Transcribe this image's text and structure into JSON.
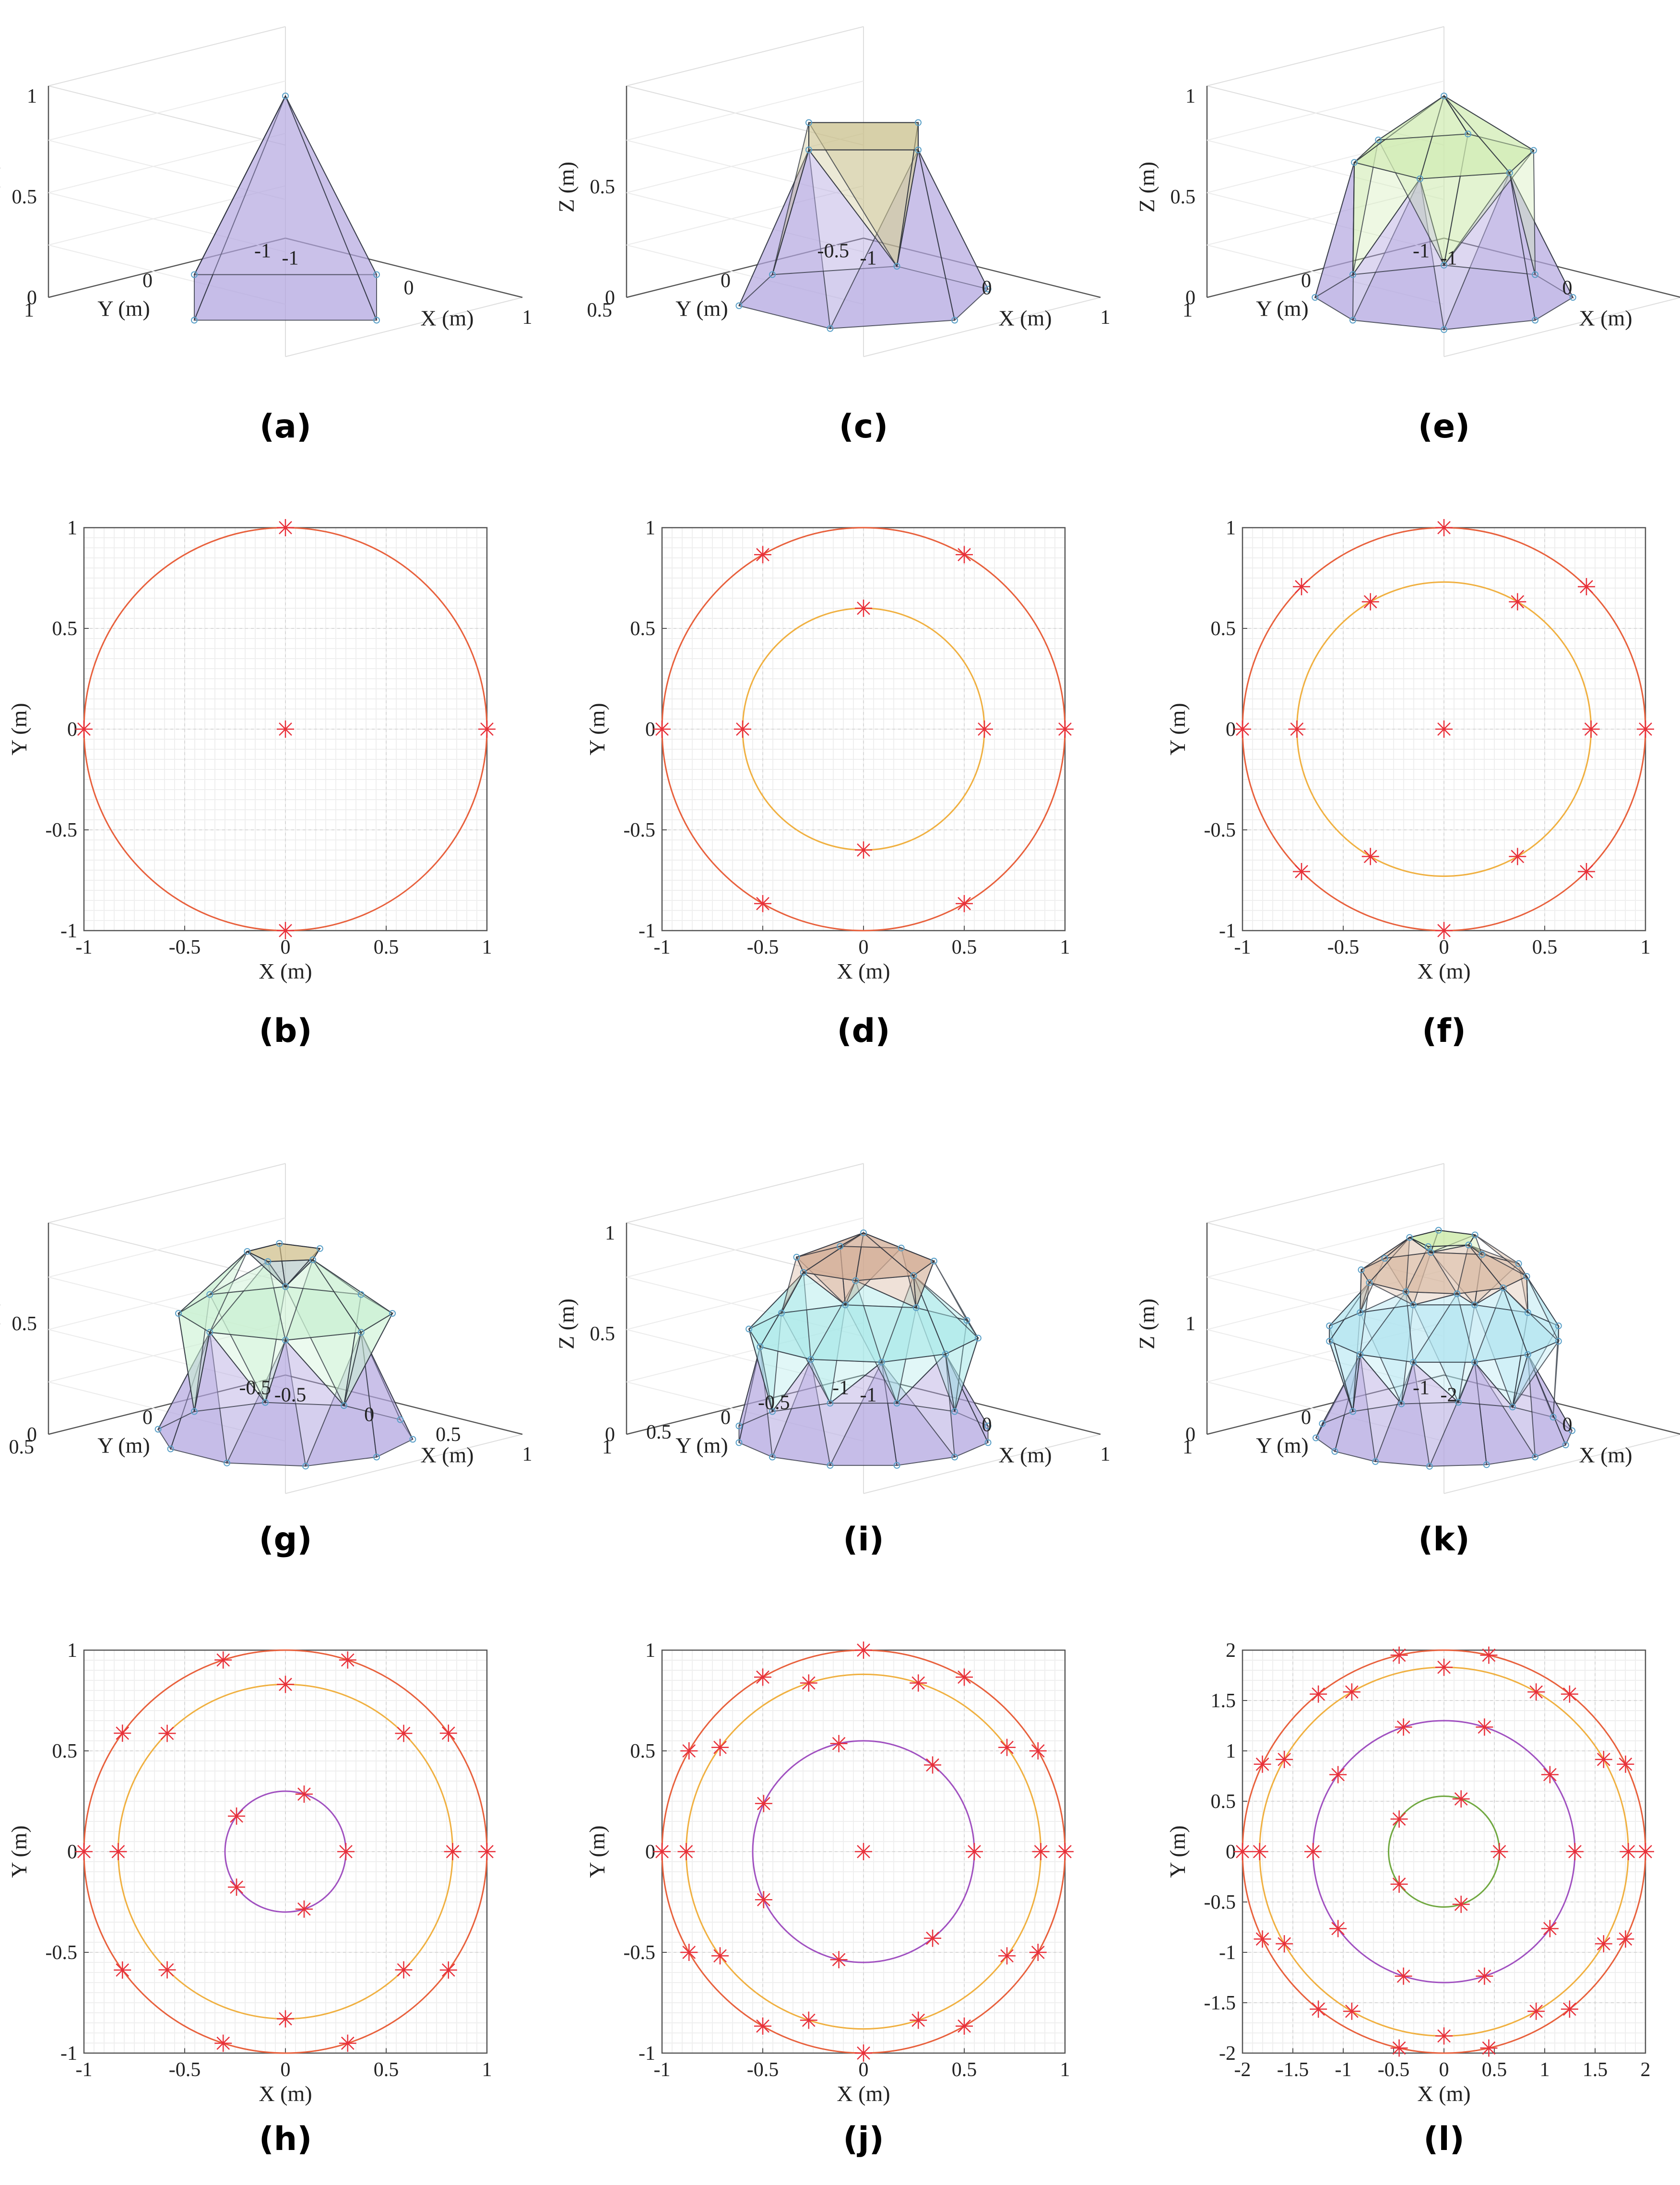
{
  "chart_data": [
    {
      "id": "a",
      "caption": "(a)",
      "type": "scatter3d",
      "xlabel": "X (m)",
      "ylabel": "Y (m)",
      "zlabel": "Z (m)",
      "xticks": [
        "-1",
        "0",
        "1"
      ],
      "yticks": [
        "-1",
        "0",
        "1"
      ],
      "zticks": [
        "0",
        "0.5",
        "1"
      ],
      "rings": [
        {
          "z": 0,
          "r": 1,
          "n": 4,
          "offset": 0
        },
        {
          "z": 1,
          "r": 0,
          "n": 1,
          "offset": 0
        }
      ],
      "fill_colors": [
        "#b3a7e0",
        "#9a8bd8"
      ]
    },
    {
      "id": "b",
      "caption": "(b)",
      "type": "scatter",
      "xlabel": "X (m)",
      "ylabel": "Y (m)",
      "xticks": [
        "-1",
        "-0.5",
        "0",
        "0.5",
        "1"
      ],
      "yticks": [
        "-1",
        "-0.5",
        "0",
        "0.5",
        "1"
      ],
      "lim": 1,
      "circles": [
        {
          "r": 1,
          "color": "#e8603c"
        }
      ],
      "points": [
        {
          "r": 1,
          "n": 4,
          "offset": 0
        },
        {
          "r": 0,
          "n": 1,
          "offset": 0
        }
      ]
    },
    {
      "id": "c",
      "caption": "(c)",
      "type": "scatter3d",
      "xlabel": "X (m)",
      "ylabel": "Y (m)",
      "zlabel": "Z (m)",
      "xticks": [
        "-1",
        "0",
        "1"
      ],
      "yticks": [
        "-0.5",
        "0",
        "0.5"
      ],
      "zticks": [
        "0",
        "0.5"
      ],
      "rings": [
        {
          "z": 0,
          "r": 1,
          "n": 6,
          "offset": 60
        },
        {
          "z": 0.8,
          "r": 0.6,
          "n": 4,
          "offset": 0
        }
      ],
      "fill_colors": [
        "#b3a7e0",
        "#c9c08a"
      ]
    },
    {
      "id": "d",
      "caption": "(d)",
      "type": "scatter",
      "xlabel": "X (m)",
      "ylabel": "Y (m)",
      "xticks": [
        "-1",
        "-0.5",
        "0",
        "0.5",
        "1"
      ],
      "yticks": [
        "-1",
        "-0.5",
        "0",
        "0.5",
        "1"
      ],
      "lim": 1,
      "circles": [
        {
          "r": 1,
          "color": "#e8603c"
        },
        {
          "r": 0.6,
          "color": "#f0b040"
        }
      ],
      "points": [
        {
          "r": 1,
          "n": 6,
          "offset": 60
        },
        {
          "r": 0.6,
          "n": 4,
          "offset": 0
        }
      ]
    },
    {
      "id": "e",
      "caption": "(e)",
      "type": "scatter3d",
      "xlabel": "X (m)",
      "ylabel": "Y (m)",
      "zlabel": "Z (m)",
      "xticks": [
        "-1",
        "0",
        "1"
      ],
      "yticks": [
        "-1",
        "0",
        "1"
      ],
      "zticks": [
        "0",
        "0.5",
        "1"
      ],
      "rings": [
        {
          "z": 0,
          "r": 1,
          "n": 8,
          "offset": 0
        },
        {
          "z": 0.7,
          "r": 0.72,
          "n": 6,
          "offset": 0
        },
        {
          "z": 1,
          "r": 0,
          "n": 1,
          "offset": 0
        }
      ],
      "fill_colors": [
        "#b3a7e0",
        "#cfeab0",
        "#a8b8a8"
      ]
    },
    {
      "id": "f",
      "caption": "(f)",
      "type": "scatter",
      "xlabel": "X (m)",
      "ylabel": "Y (m)",
      "xticks": [
        "-1",
        "-0.5",
        "0",
        "0.5",
        "1"
      ],
      "yticks": [
        "-1",
        "-0.5",
        "0",
        "0.5",
        "1"
      ],
      "lim": 1,
      "circles": [
        {
          "r": 1,
          "color": "#e8603c"
        },
        {
          "r": 0.73,
          "color": "#f0b040"
        }
      ],
      "points": [
        {
          "r": 1,
          "n": 8,
          "offset": 0
        },
        {
          "r": 0.73,
          "n": 6,
          "offset": 0
        },
        {
          "r": 0,
          "n": 1,
          "offset": 0
        }
      ]
    },
    {
      "id": "g",
      "caption": "(g)",
      "type": "scatter3d",
      "xlabel": "X (m)",
      "ylabel": "Y (m)",
      "zlabel": "Z (m)",
      "xticks": [
        "-0.5",
        "0",
        "0.5",
        "1"
      ],
      "yticks": [
        "-0.5",
        "0",
        "0.5"
      ],
      "zticks": [
        "0",
        "0.5"
      ],
      "rings": [
        {
          "z": 0,
          "r": 1,
          "n": 10,
          "offset": 0
        },
        {
          "z": 0.6,
          "r": 0.83,
          "n": 8,
          "offset": 0
        },
        {
          "z": 0.9,
          "r": 0.3,
          "n": 5,
          "offset": 0
        }
      ],
      "fill_colors": [
        "#b3a7e0",
        "#c8f0d0",
        "#a8c0c0",
        "#d8c080"
      ]
    },
    {
      "id": "h",
      "caption": "(h)",
      "type": "scatter",
      "xlabel": "X (m)",
      "ylabel": "Y (m)",
      "xticks": [
        "-1",
        "-0.5",
        "0",
        "0.5",
        "1"
      ],
      "yticks": [
        "-1",
        "-0.5",
        "0",
        "0.5",
        "1"
      ],
      "lim": 1,
      "circles": [
        {
          "r": 1,
          "color": "#e8603c"
        },
        {
          "r": 0.83,
          "color": "#f0b040"
        },
        {
          "r": 0.3,
          "color": "#a050c0"
        }
      ],
      "points": [
        {
          "r": 1,
          "n": 10,
          "offset": 0
        },
        {
          "r": 0.83,
          "n": 8,
          "offset": 0
        },
        {
          "r": 0.3,
          "n": 5,
          "offset": 0
        }
      ]
    },
    {
      "id": "i",
      "caption": "(i)",
      "type": "scatter3d",
      "xlabel": "X (m)",
      "ylabel": "Y (m)",
      "zlabel": "Z (m)",
      "xticks": [
        "-1",
        "0",
        "1"
      ],
      "yticks": [
        "-1",
        "-0.5",
        "0",
        "0.5",
        "1"
      ],
      "zticks": [
        "0",
        "0.5",
        "1"
      ],
      "rings": [
        {
          "z": 0,
          "r": 1,
          "n": 12,
          "offset": 0
        },
        {
          "z": 0.5,
          "r": 0.9,
          "n": 10,
          "offset": 0
        },
        {
          "z": 0.85,
          "r": 0.55,
          "n": 7,
          "offset": 0
        },
        {
          "z": 1,
          "r": 0,
          "n": 1,
          "offset": 0
        }
      ],
      "fill_colors": [
        "#b3a7e0",
        "#a8e8e8",
        "#d0a890",
        "#b8c898"
      ]
    },
    {
      "id": "j",
      "caption": "(j)",
      "type": "scatter",
      "xlabel": "X (m)",
      "ylabel": "Y (m)",
      "xticks": [
        "-1",
        "-0.5",
        "0",
        "0.5",
        "1"
      ],
      "yticks": [
        "-1",
        "-0.5",
        "0",
        "0.5",
        "1"
      ],
      "lim": 1,
      "circles": [
        {
          "r": 1,
          "color": "#e8603c"
        },
        {
          "r": 0.88,
          "color": "#f0b040"
        },
        {
          "r": 0.55,
          "color": "#a050c0"
        }
      ],
      "points": [
        {
          "r": 1,
          "n": 12,
          "offset": 0
        },
        {
          "r": 0.88,
          "n": 10,
          "offset": 0
        },
        {
          "r": 0.55,
          "n": 7,
          "offset": 0
        },
        {
          "r": 0,
          "n": 1,
          "offset": 0
        }
      ]
    },
    {
      "id": "k",
      "caption": "(k)",
      "type": "scatter3d",
      "xlabel": "X (m)",
      "ylabel": "Y (m)",
      "zlabel": "Z (m)",
      "xticks": [
        "-2",
        "0",
        "2"
      ],
      "yticks": [
        "-1",
        "0",
        "1"
      ],
      "zticks": [
        "0",
        "1"
      ],
      "rings": [
        {
          "z": 0,
          "r": 1,
          "n": 14,
          "offset": 0
        },
        {
          "z": 0.5,
          "r": 0.92,
          "n": 12,
          "offset": 0
        },
        {
          "z": 0.8,
          "r": 0.65,
          "n": 10,
          "offset": 0
        },
        {
          "z": 0.97,
          "r": 0.27,
          "n": 5,
          "offset": 0
        }
      ],
      "fill_colors": [
        "#b3a7e0",
        "#b0e4f0",
        "#d8b8a0",
        "#c8e8a0"
      ]
    },
    {
      "id": "l",
      "caption": "(l)",
      "type": "scatter",
      "xlabel": "X (m)",
      "ylabel": "Y (m)",
      "xticks": [
        "-2",
        "-1.5",
        "-1",
        "-0.5",
        "0",
        "0.5",
        "1",
        "1.5",
        "2"
      ],
      "yticks": [
        "-2",
        "-1.5",
        "-1",
        "-0.5",
        "0",
        "0.5",
        "1",
        "1.5",
        "2"
      ],
      "lim": 2,
      "circles": [
        {
          "r": 2,
          "color": "#e8603c"
        },
        {
          "r": 1.83,
          "color": "#f0b040"
        },
        {
          "r": 1.3,
          "color": "#a050c0"
        },
        {
          "r": 0.55,
          "color": "#70a840"
        }
      ],
      "points": [
        {
          "r": 2,
          "n": 14,
          "offset": 0
        },
        {
          "r": 1.83,
          "n": 12,
          "offset": 0
        },
        {
          "r": 1.3,
          "n": 10,
          "offset": 0
        },
        {
          "r": 0.55,
          "n": 5,
          "offset": 0
        }
      ]
    }
  ],
  "colors": {
    "marker": "#e8303a",
    "grid": "#d9d9d9",
    "axis": "#555555",
    "edge": "#2a2f3a",
    "node": "#5aa0c8"
  }
}
